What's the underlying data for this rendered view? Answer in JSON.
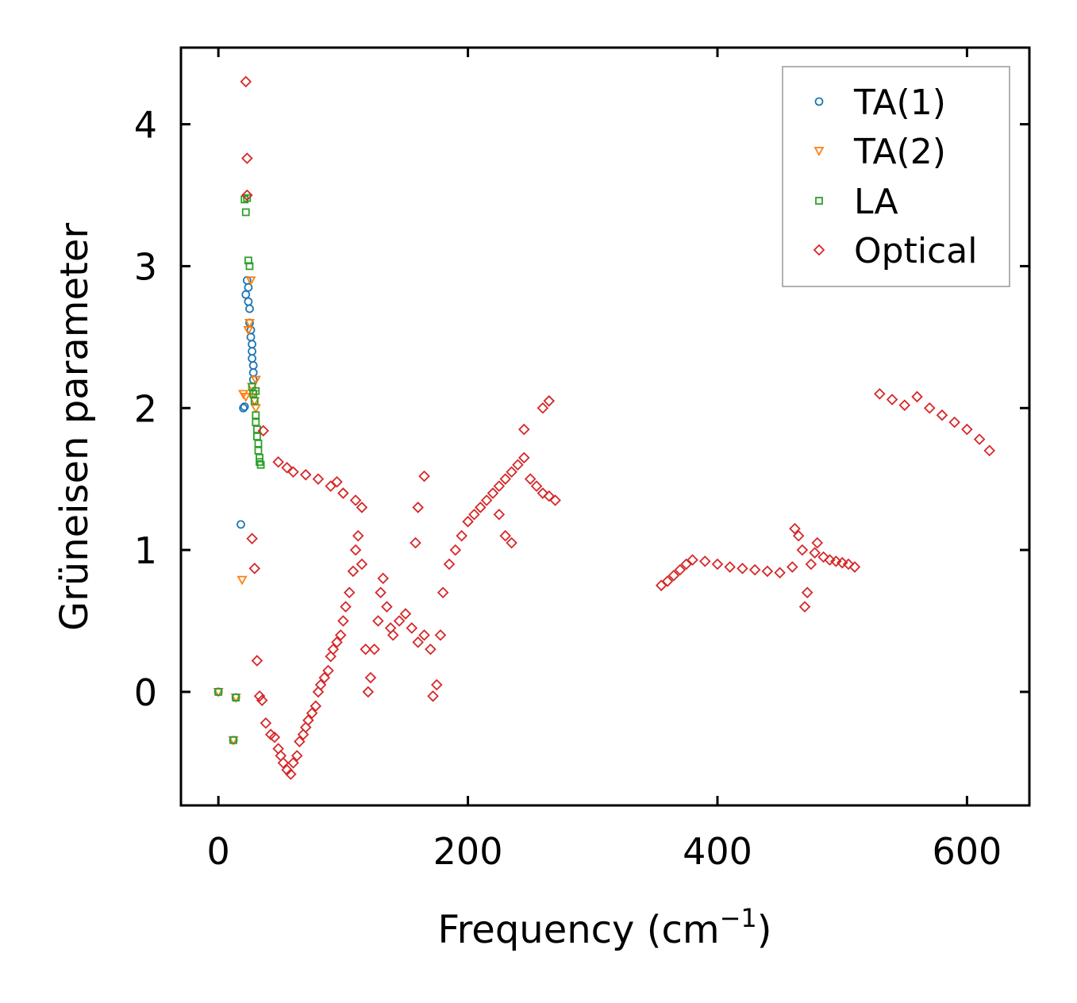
{
  "chart_data": {
    "type": "scatter",
    "title": "",
    "xlabel": "Frequency (cm",
    "xlabel_sup": "−1",
    "xlabel_close": ")",
    "ylabel": "Grüneisen parameter",
    "xlim": [
      -30,
      650
    ],
    "ylim": [
      -0.8,
      4.54
    ],
    "xticks": [
      0,
      200,
      400,
      600
    ],
    "xtick_labels": [
      "0",
      "200",
      "400",
      "600"
    ],
    "yticks": [
      0,
      1,
      2,
      3,
      4
    ],
    "ytick_labels": [
      "0",
      "1",
      "2",
      "3",
      "4"
    ],
    "grid": false,
    "legend_position": "top-right",
    "series": [
      {
        "name": "TA(1)",
        "marker": "circle",
        "color": "#1f77b4",
        "points": [
          [
            0,
            0
          ],
          [
            12,
            -0.34
          ],
          [
            14,
            -0.04
          ],
          [
            18,
            1.18
          ],
          [
            20,
            2.0
          ],
          [
            21,
            2.01
          ],
          [
            22,
            2.8
          ],
          [
            23,
            2.9
          ],
          [
            24,
            2.85
          ],
          [
            24,
            2.75
          ],
          [
            25,
            2.7
          ],
          [
            25,
            2.6
          ],
          [
            26,
            2.55
          ],
          [
            26,
            2.5
          ],
          [
            27,
            2.45
          ],
          [
            27,
            2.4
          ],
          [
            27,
            2.35
          ],
          [
            28,
            2.3
          ],
          [
            28,
            2.25
          ],
          [
            28,
            2.2
          ]
        ]
      },
      {
        "name": "TA(2)",
        "marker": "triangle-down",
        "color": "#ff7f0e",
        "points": [
          [
            0,
            0
          ],
          [
            12,
            -0.34
          ],
          [
            14,
            -0.04
          ],
          [
            19,
            0.79
          ],
          [
            20,
            2.1
          ],
          [
            22,
            2.08
          ],
          [
            24,
            2.55
          ],
          [
            25,
            2.6
          ],
          [
            26,
            2.9
          ],
          [
            27,
            2.15
          ],
          [
            28,
            2.1
          ],
          [
            29,
            2.05
          ],
          [
            30,
            2.0
          ],
          [
            30,
            2.2
          ]
        ]
      },
      {
        "name": "LA",
        "marker": "square",
        "color": "#2ca02c",
        "points": [
          [
            0,
            0
          ],
          [
            12,
            -0.34
          ],
          [
            14,
            -0.04
          ],
          [
            21,
            3.47
          ],
          [
            22,
            3.38
          ],
          [
            23,
            3.48
          ],
          [
            24,
            3.04
          ],
          [
            25,
            3.0
          ],
          [
            27,
            2.15
          ],
          [
            28,
            2.1
          ],
          [
            29,
            2.05
          ],
          [
            30,
            1.95
          ],
          [
            30,
            1.9
          ],
          [
            31,
            1.85
          ],
          [
            31,
            1.8
          ],
          [
            32,
            1.75
          ],
          [
            32,
            1.7
          ],
          [
            33,
            1.65
          ],
          [
            33,
            1.62
          ],
          [
            34,
            1.6
          ],
          [
            30,
            2.12
          ]
        ]
      },
      {
        "name": "Optical",
        "marker": "diamond",
        "color": "#d62728",
        "points": [
          [
            22,
            4.3
          ],
          [
            23,
            3.76
          ],
          [
            23,
            3.5
          ],
          [
            27,
            1.08
          ],
          [
            29,
            0.87
          ],
          [
            31,
            0.22
          ],
          [
            33,
            -0.03
          ],
          [
            35,
            -0.06
          ],
          [
            36,
            1.84
          ],
          [
            38,
            -0.22
          ],
          [
            42,
            -0.3
          ],
          [
            45,
            -0.32
          ],
          [
            48,
            -0.4
          ],
          [
            50,
            -0.45
          ],
          [
            52,
            -0.5
          ],
          [
            55,
            -0.55
          ],
          [
            58,
            -0.58
          ],
          [
            60,
            -0.5
          ],
          [
            63,
            -0.45
          ],
          [
            65,
            -0.35
          ],
          [
            68,
            -0.3
          ],
          [
            70,
            -0.25
          ],
          [
            72,
            -0.2
          ],
          [
            75,
            -0.15
          ],
          [
            78,
            -0.1
          ],
          [
            80,
            0.0
          ],
          [
            82,
            0.05
          ],
          [
            85,
            0.1
          ],
          [
            88,
            0.15
          ],
          [
            90,
            0.25
          ],
          [
            92,
            0.3
          ],
          [
            95,
            0.35
          ],
          [
            98,
            0.4
          ],
          [
            100,
            0.5
          ],
          [
            102,
            0.6
          ],
          [
            105,
            0.7
          ],
          [
            108,
            0.85
          ],
          [
            110,
            1.0
          ],
          [
            112,
            1.1
          ],
          [
            115,
            0.9
          ],
          [
            118,
            0.3
          ],
          [
            120,
            0.0
          ],
          [
            122,
            0.1
          ],
          [
            125,
            0.3
          ],
          [
            128,
            0.5
          ],
          [
            130,
            0.7
          ],
          [
            132,
            0.8
          ],
          [
            135,
            0.6
          ],
          [
            138,
            0.45
          ],
          [
            140,
            0.4
          ],
          [
            145,
            0.5
          ],
          [
            150,
            0.55
          ],
          [
            155,
            0.45
          ],
          [
            160,
            0.35
          ],
          [
            165,
            0.4
          ],
          [
            170,
            0.3
          ],
          [
            172,
            -0.03
          ],
          [
            175,
            0.05
          ],
          [
            178,
            0.4
          ],
          [
            180,
            0.7
          ],
          [
            185,
            0.9
          ],
          [
            190,
            1.0
          ],
          [
            195,
            1.1
          ],
          [
            200,
            1.2
          ],
          [
            205,
            1.25
          ],
          [
            210,
            1.3
          ],
          [
            215,
            1.35
          ],
          [
            220,
            1.4
          ],
          [
            225,
            1.45
          ],
          [
            230,
            1.5
          ],
          [
            235,
            1.55
          ],
          [
            240,
            1.6
          ],
          [
            245,
            1.65
          ],
          [
            250,
            1.5
          ],
          [
            255,
            1.45
          ],
          [
            260,
            1.4
          ],
          [
            265,
            1.38
          ],
          [
            270,
            1.35
          ],
          [
            260,
            2.0
          ],
          [
            265,
            2.05
          ],
          [
            245,
            1.85
          ],
          [
            225,
            1.25
          ],
          [
            230,
            1.1
          ],
          [
            235,
            1.05
          ],
          [
            165,
            1.52
          ],
          [
            160,
            1.3
          ],
          [
            158,
            1.05
          ],
          [
            48,
            1.62
          ],
          [
            55,
            1.58
          ],
          [
            60,
            1.55
          ],
          [
            70,
            1.53
          ],
          [
            80,
            1.5
          ],
          [
            90,
            1.45
          ],
          [
            95,
            1.48
          ],
          [
            100,
            1.4
          ],
          [
            110,
            1.35
          ],
          [
            115,
            1.3
          ],
          [
            355,
            0.75
          ],
          [
            360,
            0.78
          ],
          [
            365,
            0.82
          ],
          [
            370,
            0.86
          ],
          [
            375,
            0.9
          ],
          [
            380,
            0.93
          ],
          [
            390,
            0.92
          ],
          [
            400,
            0.9
          ],
          [
            410,
            0.88
          ],
          [
            420,
            0.87
          ],
          [
            430,
            0.86
          ],
          [
            440,
            0.85
          ],
          [
            450,
            0.84
          ],
          [
            460,
            0.88
          ],
          [
            462,
            1.15
          ],
          [
            465,
            1.1
          ],
          [
            468,
            1.0
          ],
          [
            470,
            0.6
          ],
          [
            472,
            0.7
          ],
          [
            475,
            0.9
          ],
          [
            478,
            0.98
          ],
          [
            480,
            1.05
          ],
          [
            485,
            0.95
          ],
          [
            490,
            0.93
          ],
          [
            495,
            0.92
          ],
          [
            500,
            0.91
          ],
          [
            505,
            0.9
          ],
          [
            510,
            0.88
          ],
          [
            530,
            2.1
          ],
          [
            540,
            2.06
          ],
          [
            550,
            2.02
          ],
          [
            560,
            2.08
          ],
          [
            570,
            2.0
          ],
          [
            580,
            1.95
          ],
          [
            590,
            1.9
          ],
          [
            600,
            1.85
          ],
          [
            610,
            1.78
          ],
          [
            618,
            1.7
          ]
        ]
      }
    ]
  }
}
